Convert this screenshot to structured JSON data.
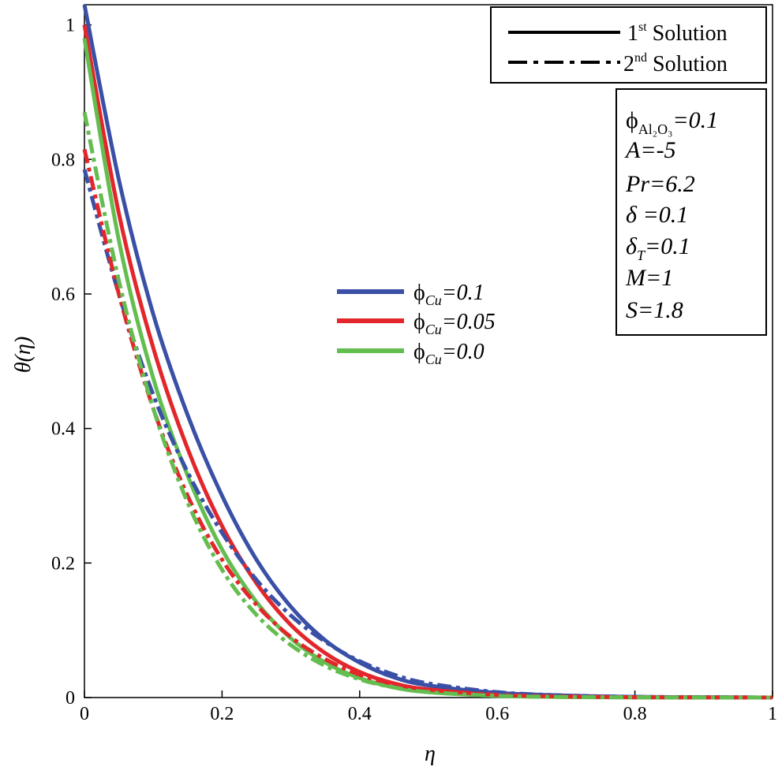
{
  "chart_data": {
    "type": "line",
    "title": "",
    "xlabel": "η",
    "ylabel": "θ(η)",
    "xlim": [
      0,
      1
    ],
    "ylim": [
      0,
      1.03
    ],
    "xticks": [
      0,
      0.2,
      0.4,
      0.6,
      0.8,
      1
    ],
    "xtick_labels": [
      "0",
      "0.2",
      "0.4",
      "0.6",
      "0.8",
      "1"
    ],
    "yticks": [
      0,
      0.2,
      0.4,
      0.6,
      0.8,
      1
    ],
    "ytick_labels": [
      "0",
      "0.2",
      "0.4",
      "0.6",
      "0.8",
      "1"
    ],
    "grid": false,
    "style_legend": {
      "placement": "top-right",
      "entries": [
        {
          "style": "solid",
          "label_main": "1",
          "label_sup": "st",
          "label_rest": " Solution"
        },
        {
          "style": "dashdot",
          "label_main": "2",
          "label_sup": "nd",
          "label_rest": " Solution"
        }
      ]
    },
    "color_legend": {
      "placement": "center",
      "entries": [
        {
          "color": "#3a50a6",
          "symbol": "ϕ",
          "sub": "Cu",
          "value_text": "=0.1"
        },
        {
          "color": "#e2262b",
          "symbol": "ϕ",
          "sub": "Cu",
          "value_text": "=0.05"
        },
        {
          "color": "#63bd4f",
          "symbol": "ϕ",
          "sub": "Cu",
          "value_text": "=0.0"
        }
      ]
    },
    "parameters": {
      "placement": "top-right",
      "phi_al2o3": {
        "symbol": "ϕ",
        "sub": "Al₂O₃",
        "value_text": "=0.1"
      },
      "A": "A=-5",
      "Pr": "Pr=6.2",
      "delta": {
        "symbol": "δ",
        "value_text": " =0.1"
      },
      "delta_T": {
        "symbol": "δ",
        "sub": "T",
        "value_text": "=0.1"
      },
      "M": "M=1",
      "S": "S=1.8"
    },
    "series": [
      {
        "name": "ϕCu=0.1 1st Solution",
        "color": "#3a50a6",
        "style": "solid",
        "x": [
          0,
          0.05,
          0.1,
          0.15,
          0.2,
          0.25,
          0.3,
          0.35,
          0.4,
          0.45,
          0.5,
          0.6,
          0.7,
          0.8,
          0.9,
          1.0
        ],
        "y": [
          1.03,
          0.77,
          0.57,
          0.42,
          0.3,
          0.205,
          0.135,
          0.085,
          0.052,
          0.03,
          0.018,
          0.007,
          0.003,
          0.001,
          0.0005,
          0.0
        ]
      },
      {
        "name": "ϕCu=0.05 1st Solution",
        "color": "#e2262b",
        "style": "solid",
        "x": [
          0,
          0.05,
          0.1,
          0.15,
          0.2,
          0.25,
          0.3,
          0.35,
          0.4,
          0.45,
          0.5,
          0.6,
          0.7,
          0.8,
          0.9,
          1.0
        ],
        "y": [
          1.0,
          0.72,
          0.52,
          0.37,
          0.255,
          0.17,
          0.108,
          0.066,
          0.038,
          0.021,
          0.012,
          0.004,
          0.0015,
          0.0005,
          0.0002,
          0.0
        ]
      },
      {
        "name": "ϕCu=0.0 1st Solution",
        "color": "#63bd4f",
        "style": "solid",
        "x": [
          0,
          0.05,
          0.1,
          0.15,
          0.2,
          0.25,
          0.3,
          0.35,
          0.4,
          0.45,
          0.5,
          0.6,
          0.7,
          0.8,
          0.9,
          1.0
        ],
        "y": [
          0.98,
          0.68,
          0.475,
          0.33,
          0.22,
          0.142,
          0.088,
          0.052,
          0.029,
          0.015,
          0.008,
          0.0025,
          0.0008,
          0.0003,
          0.0001,
          0.0
        ]
      },
      {
        "name": "ϕCu=0.1 2nd Solution",
        "color": "#3a50a6",
        "style": "dashdot",
        "x": [
          0,
          0.05,
          0.1,
          0.15,
          0.2,
          0.25,
          0.3,
          0.35,
          0.4,
          0.45,
          0.5,
          0.6,
          0.7,
          0.8,
          0.9,
          1.0
        ],
        "y": [
          0.785,
          0.6,
          0.45,
          0.335,
          0.245,
          0.175,
          0.122,
          0.083,
          0.054,
          0.034,
          0.021,
          0.008,
          0.003,
          0.001,
          0.0004,
          0.0
        ]
      },
      {
        "name": "ϕCu=0.05 2nd Solution",
        "color": "#e2262b",
        "style": "dashdot",
        "x": [
          0,
          0.05,
          0.1,
          0.15,
          0.2,
          0.25,
          0.3,
          0.35,
          0.4,
          0.45,
          0.5,
          0.6,
          0.7,
          0.8,
          0.9,
          1.0
        ],
        "y": [
          0.815,
          0.6,
          0.43,
          0.3,
          0.205,
          0.138,
          0.09,
          0.057,
          0.034,
          0.02,
          0.012,
          0.004,
          0.0015,
          0.0005,
          0.0002,
          0.0
        ]
      },
      {
        "name": "ϕCu=0.0 2nd Solution",
        "color": "#63bd4f",
        "style": "dashdot",
        "x": [
          0,
          0.05,
          0.1,
          0.15,
          0.2,
          0.25,
          0.3,
          0.35,
          0.4,
          0.45,
          0.5,
          0.6,
          0.7,
          0.8,
          0.9,
          1.0
        ],
        "y": [
          0.87,
          0.62,
          0.43,
          0.29,
          0.19,
          0.123,
          0.078,
          0.047,
          0.027,
          0.015,
          0.008,
          0.0025,
          0.0008,
          0.0003,
          0.0001,
          0.0
        ]
      }
    ]
  }
}
